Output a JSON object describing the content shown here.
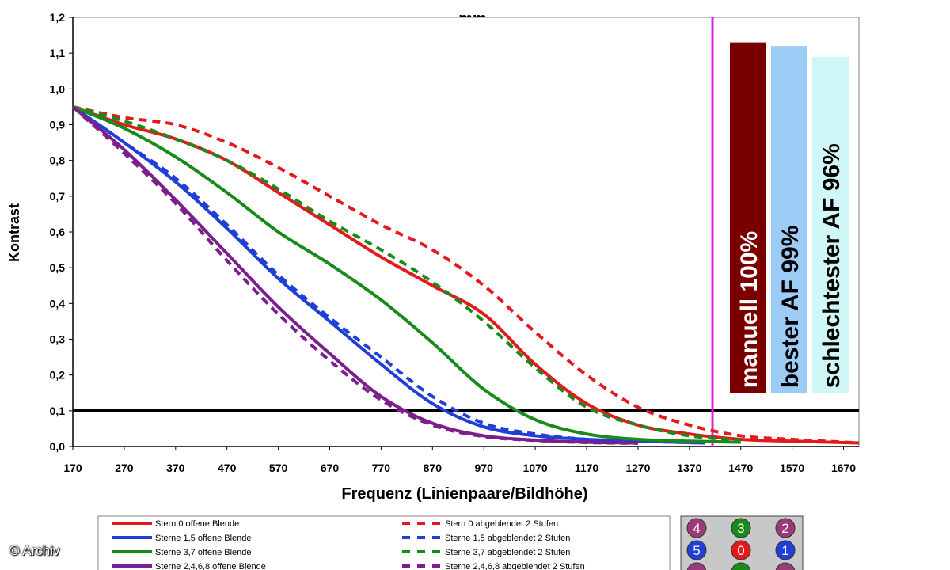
{
  "chart_data": {
    "type": "line",
    "title": "mm",
    "xlabel": "Frequenz (Linienpaare/Bildhöhe)",
    "ylabel": "Kontrast",
    "xlim": [
      170,
      1700
    ],
    "ylim": [
      0,
      1.2
    ],
    "x_ticks": [
      "170",
      "270",
      "370",
      "470",
      "570",
      "670",
      "770",
      "870",
      "970",
      "1070",
      "1170",
      "1270",
      "1370",
      "1470",
      "1570",
      "1670"
    ],
    "y_ticks": [
      "0,0",
      "0,1",
      "0,2",
      "0,3",
      "0,4",
      "0,5",
      "0,6",
      "0,7",
      "0,8",
      "0,9",
      "1,0",
      "1,1",
      "1,2"
    ],
    "reference_line": {
      "y": 0.1,
      "color": "#000000"
    },
    "vertical_marker": {
      "x": 1415,
      "color": "#dd22dd"
    },
    "series": [
      {
        "name": "Stern 0 offene Blende",
        "color": "#e31a1c",
        "dashed": false,
        "points": [
          [
            170,
            0.95
          ],
          [
            270,
            0.9
          ],
          [
            370,
            0.86
          ],
          [
            470,
            0.8
          ],
          [
            570,
            0.71
          ],
          [
            670,
            0.62
          ],
          [
            770,
            0.53
          ],
          [
            870,
            0.45
          ],
          [
            970,
            0.37
          ],
          [
            1070,
            0.23
          ],
          [
            1170,
            0.12
          ],
          [
            1270,
            0.06
          ],
          [
            1370,
            0.035
          ],
          [
            1470,
            0.02
          ],
          [
            1570,
            0.015
          ],
          [
            1700,
            0.01
          ]
        ]
      },
      {
        "name": "Stern 0 abgeblendet 2 Stufen",
        "color": "#e31a1c",
        "dashed": true,
        "points": [
          [
            170,
            0.95
          ],
          [
            270,
            0.92
          ],
          [
            370,
            0.9
          ],
          [
            470,
            0.85
          ],
          [
            570,
            0.78
          ],
          [
            670,
            0.7
          ],
          [
            770,
            0.62
          ],
          [
            870,
            0.55
          ],
          [
            970,
            0.45
          ],
          [
            1070,
            0.32
          ],
          [
            1170,
            0.2
          ],
          [
            1270,
            0.11
          ],
          [
            1370,
            0.06
          ],
          [
            1470,
            0.03
          ],
          [
            1570,
            0.02
          ],
          [
            1700,
            0.01
          ]
        ]
      },
      {
        "name": "Sterne 1,5 offene Blende",
        "color": "#1f3fd6",
        "dashed": false,
        "points": [
          [
            170,
            0.95
          ],
          [
            270,
            0.85
          ],
          [
            370,
            0.74
          ],
          [
            470,
            0.61
          ],
          [
            570,
            0.47
          ],
          [
            670,
            0.35
          ],
          [
            770,
            0.23
          ],
          [
            870,
            0.12
          ],
          [
            970,
            0.055
          ],
          [
            1070,
            0.03
          ],
          [
            1170,
            0.02
          ],
          [
            1270,
            0.015
          ],
          [
            1400,
            0.01
          ]
        ]
      },
      {
        "name": "Sterne 1,5 abgeblendet 2 Stufen",
        "color": "#1f3fd6",
        "dashed": true,
        "points": [
          [
            170,
            0.95
          ],
          [
            270,
            0.85
          ],
          [
            370,
            0.75
          ],
          [
            470,
            0.62
          ],
          [
            570,
            0.48
          ],
          [
            670,
            0.36
          ],
          [
            770,
            0.25
          ],
          [
            870,
            0.14
          ],
          [
            970,
            0.065
          ],
          [
            1070,
            0.035
          ],
          [
            1170,
            0.02
          ],
          [
            1270,
            0.015
          ],
          [
            1400,
            0.01
          ]
        ]
      },
      {
        "name": "Sterne 3,7 offene Blende",
        "color": "#1a8a1a",
        "dashed": false,
        "points": [
          [
            170,
            0.95
          ],
          [
            270,
            0.89
          ],
          [
            370,
            0.81
          ],
          [
            470,
            0.71
          ],
          [
            570,
            0.6
          ],
          [
            670,
            0.51
          ],
          [
            770,
            0.41
          ],
          [
            870,
            0.29
          ],
          [
            970,
            0.16
          ],
          [
            1070,
            0.075
          ],
          [
            1170,
            0.035
          ],
          [
            1270,
            0.02
          ],
          [
            1370,
            0.015
          ],
          [
            1470,
            0.012
          ]
        ]
      },
      {
        "name": "Sterne 3,7 abgeblendet 2 Stufen",
        "color": "#1a8a1a",
        "dashed": true,
        "points": [
          [
            170,
            0.95
          ],
          [
            270,
            0.91
          ],
          [
            370,
            0.86
          ],
          [
            470,
            0.8
          ],
          [
            570,
            0.72
          ],
          [
            670,
            0.63
          ],
          [
            770,
            0.55
          ],
          [
            870,
            0.46
          ],
          [
            970,
            0.35
          ],
          [
            1070,
            0.22
          ],
          [
            1170,
            0.11
          ],
          [
            1270,
            0.06
          ],
          [
            1370,
            0.03
          ],
          [
            1470,
            0.018
          ]
        ]
      },
      {
        "name": "Sterne 2,4,6,8 offene Blende",
        "color": "#7a1f8c",
        "dashed": false,
        "points": [
          [
            170,
            0.95
          ],
          [
            270,
            0.83
          ],
          [
            370,
            0.69
          ],
          [
            470,
            0.54
          ],
          [
            570,
            0.39
          ],
          [
            670,
            0.26
          ],
          [
            770,
            0.14
          ],
          [
            870,
            0.065
          ],
          [
            970,
            0.03
          ],
          [
            1070,
            0.018
          ],
          [
            1170,
            0.012
          ],
          [
            1270,
            0.01
          ]
        ]
      },
      {
        "name": "Sterne 2,4,6,8 abgeblendet 2 Stufen",
        "color": "#7a1f8c",
        "dashed": true,
        "points": [
          [
            170,
            0.95
          ],
          [
            270,
            0.82
          ],
          [
            370,
            0.68
          ],
          [
            470,
            0.52
          ],
          [
            570,
            0.37
          ],
          [
            670,
            0.24
          ],
          [
            770,
            0.13
          ],
          [
            870,
            0.06
          ],
          [
            970,
            0.028
          ],
          [
            1070,
            0.017
          ],
          [
            1170,
            0.011
          ],
          [
            1270,
            0.009
          ]
        ]
      }
    ],
    "bars": [
      {
        "label": "manuell 100%",
        "value": 1.13,
        "color": "#7a0000",
        "text_color": "#ffffff"
      },
      {
        "label": "bester AF 99%",
        "value": 1.12,
        "color": "#9ccbf5",
        "text_color": "#000000"
      },
      {
        "label": "schlechtester AF 96%",
        "value": 1.09,
        "color": "#cff7f7",
        "text_color": "#000000"
      }
    ]
  },
  "legend": {
    "items": [
      {
        "label": "Stern 0 offene Blende",
        "color": "#e31a1c",
        "dashed": false
      },
      {
        "label": "Sterne 1,5 offene Blende",
        "color": "#1f3fd6",
        "dashed": false
      },
      {
        "label": "Sterne 3,7 offene Blende",
        "color": "#1a8a1a",
        "dashed": false
      },
      {
        "label": "Sterne 2,4,6,8 offene Blende",
        "color": "#7a1f8c",
        "dashed": false
      },
      {
        "label": "Stern 0 abgeblendet 2 Stufen",
        "color": "#e31a1c",
        "dashed": true
      },
      {
        "label": "Sterne 1,5 abgeblendet 2 Stufen",
        "color": "#1f3fd6",
        "dashed": true
      },
      {
        "label": "Sterne 3,7 abgeblendet 2 Stufen",
        "color": "#1a8a1a",
        "dashed": true
      },
      {
        "label": "Sterne 2,4,6,8 abgeblendet 2 Stufen",
        "color": "#7a1f8c",
        "dashed": true
      }
    ]
  },
  "star_grid": {
    "cells": [
      {
        "label": "4",
        "color": "#9b3a7a"
      },
      {
        "label": "3",
        "color": "#1a8a1a"
      },
      {
        "label": "2",
        "color": "#9b3a7a"
      },
      {
        "label": "5",
        "color": "#1f3fd6"
      },
      {
        "label": "0",
        "color": "#e31a1c"
      },
      {
        "label": "1",
        "color": "#1f3fd6"
      },
      {
        "label": "",
        "color": "#9b3a7a"
      },
      {
        "label": "",
        "color": "#1a8a1a"
      },
      {
        "label": "",
        "color": "#9b3a7a"
      }
    ]
  },
  "copyright": "© Archiv"
}
